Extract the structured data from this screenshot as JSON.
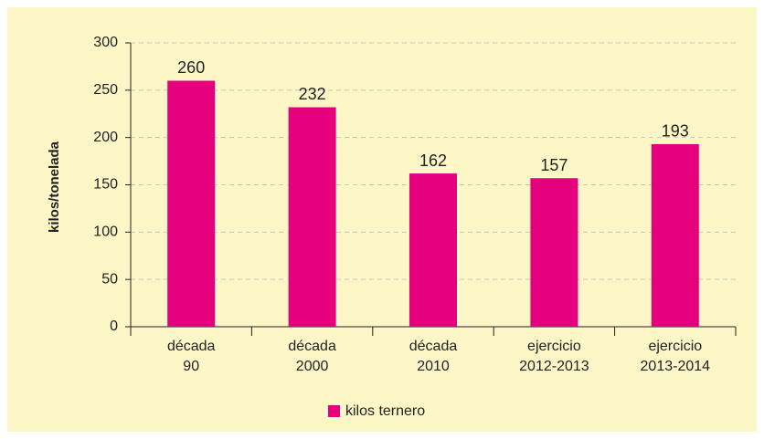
{
  "chart_data": {
    "type": "bar",
    "categories": [
      "década 90",
      "década 2000",
      "década 2010",
      "ejercicio 2012-2013",
      "ejercicio 2013-2014"
    ],
    "series": [
      {
        "name": "kilos ternero",
        "color": "#e5007e",
        "values": [
          260,
          232,
          162,
          157,
          193
        ]
      }
    ],
    "y_label": "kilos/tonelada",
    "ylim": [
      0,
      300
    ],
    "yticks": [
      0,
      50,
      100,
      150,
      200,
      250,
      300
    ],
    "grid": true,
    "legend": "bottom"
  }
}
